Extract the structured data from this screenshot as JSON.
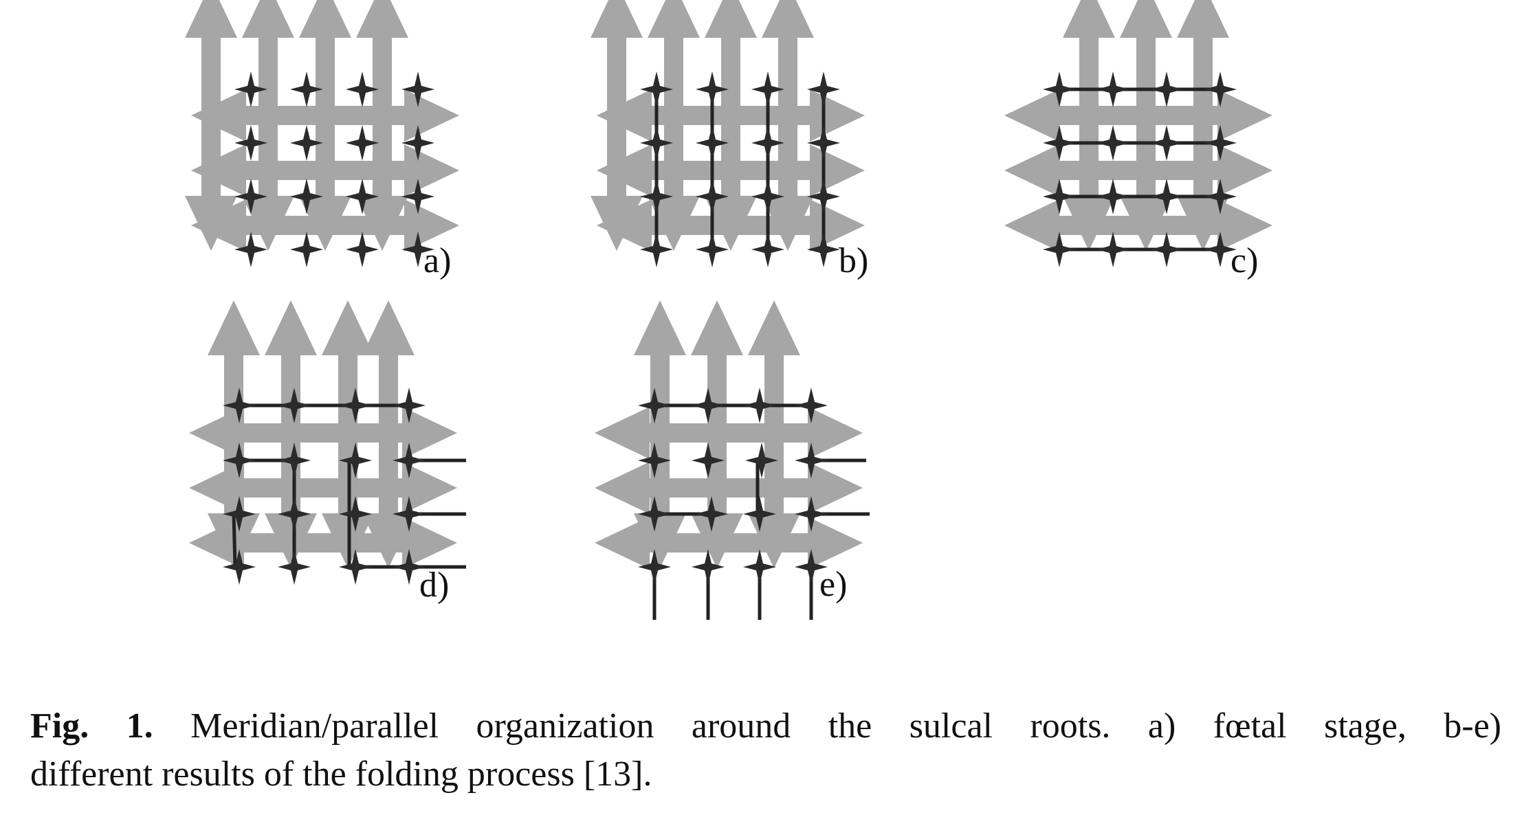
{
  "figure": {
    "panels": [
      {
        "label": "a)",
        "connections": "none"
      },
      {
        "label": "b)",
        "connections": "meridians"
      },
      {
        "label": "c)",
        "connections": "parallels"
      },
      {
        "label": "d)",
        "connections": "mixed"
      },
      {
        "label": "e)",
        "connections": "mixed"
      }
    ],
    "colors": {
      "arrow_fill": "#a6a6a6",
      "root_star": "#2b2b2b",
      "connection_line": "#222222"
    },
    "icons": [
      "double-headed-arrow-icon",
      "four-point-star-icon"
    ]
  },
  "caption": {
    "fig_label": "Fig. 1.",
    "line1_text": " Meridian/parallel organization around the sulcal roots. a) fœtal stage, b-e)",
    "line2_text": "different results of the folding process [13]."
  }
}
